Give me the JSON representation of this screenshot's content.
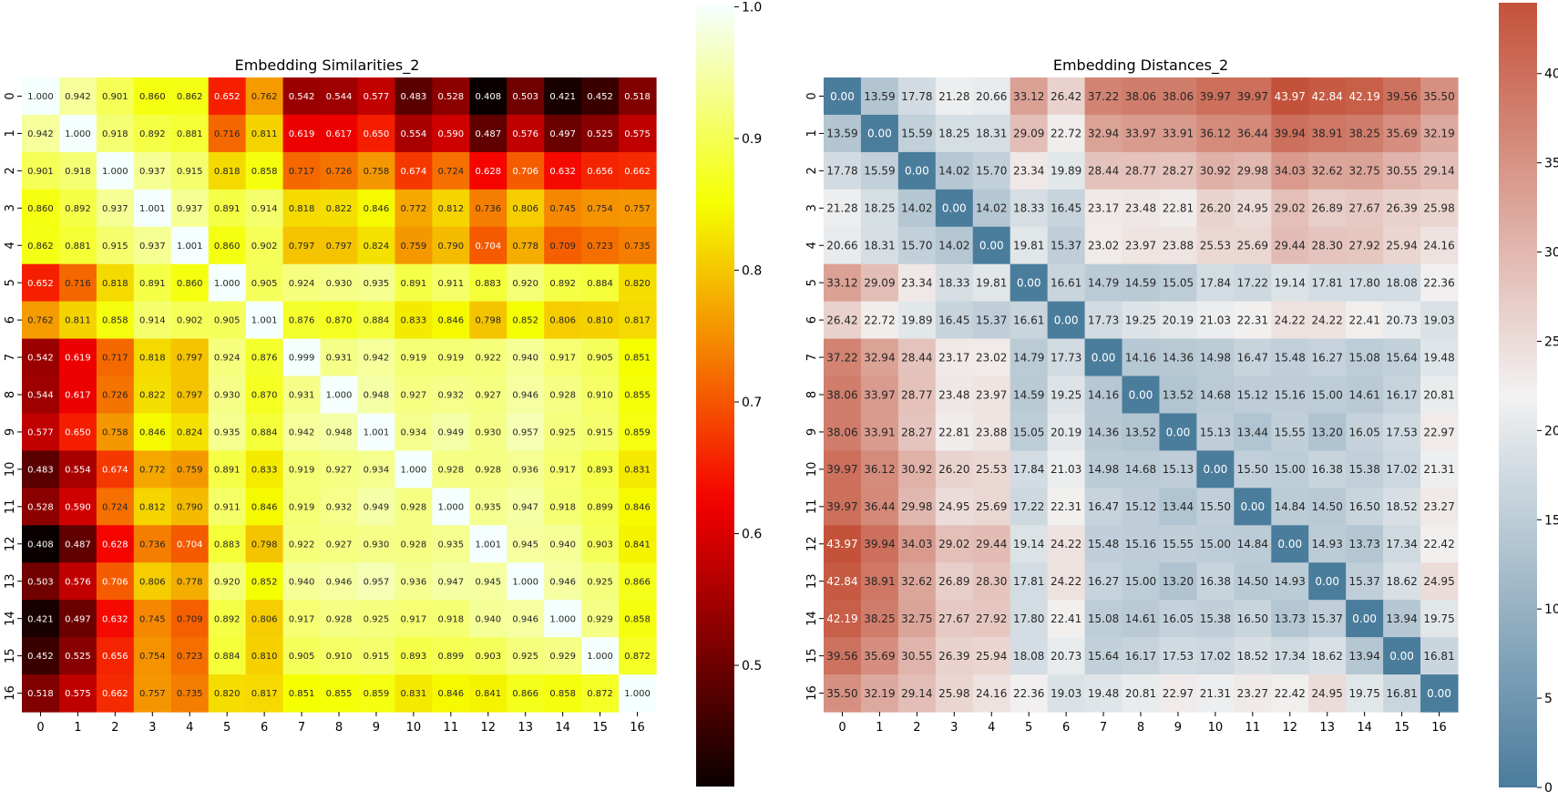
{
  "chart_data": [
    {
      "type": "heatmap",
      "title": "Embedding Similarities_2",
      "xlabel": "",
      "ylabel": "",
      "x_ticks": [
        "0",
        "1",
        "2",
        "3",
        "4",
        "5",
        "6",
        "7",
        "8",
        "9",
        "10",
        "11",
        "12",
        "13",
        "14",
        "15",
        "16"
      ],
      "y_ticks": [
        "0",
        "1",
        "2",
        "3",
        "4",
        "5",
        "6",
        "7",
        "8",
        "9",
        "10",
        "11",
        "12",
        "13",
        "14",
        "15",
        "16"
      ],
      "colormap": "hot",
      "vmin": 0.408,
      "vmax": 1.001,
      "colorbar_ticks": [
        "0.5",
        "0.6",
        "0.7",
        "0.8",
        "0.9",
        "1.0"
      ],
      "annotations_format": "3 decimals",
      "values": [
        [
          1.0,
          0.942,
          0.901,
          0.86,
          0.862,
          0.652,
          0.762,
          0.542,
          0.544,
          0.577,
          0.483,
          0.528,
          0.408,
          0.503,
          0.421,
          0.452,
          0.518
        ],
        [
          0.942,
          1.0,
          0.918,
          0.892,
          0.881,
          0.716,
          0.811,
          0.619,
          0.617,
          0.65,
          0.554,
          0.59,
          0.487,
          0.576,
          0.497,
          0.525,
          0.575
        ],
        [
          0.901,
          0.918,
          1.0,
          0.937,
          0.915,
          0.818,
          0.858,
          0.717,
          0.726,
          0.758,
          0.674,
          0.724,
          0.628,
          0.706,
          0.632,
          0.656,
          0.662
        ],
        [
          0.86,
          0.892,
          0.937,
          1.001,
          0.937,
          0.891,
          0.914,
          0.818,
          0.822,
          0.846,
          0.772,
          0.812,
          0.736,
          0.806,
          0.745,
          0.754,
          0.757
        ],
        [
          0.862,
          0.881,
          0.915,
          0.937,
          1.001,
          0.86,
          0.902,
          0.797,
          0.797,
          0.824,
          0.759,
          0.79,
          0.704,
          0.778,
          0.709,
          0.723,
          0.735
        ],
        [
          0.652,
          0.716,
          0.818,
          0.891,
          0.86,
          1.0,
          0.905,
          0.924,
          0.93,
          0.935,
          0.891,
          0.911,
          0.883,
          0.92,
          0.892,
          0.884,
          0.82
        ],
        [
          0.762,
          0.811,
          0.858,
          0.914,
          0.902,
          0.905,
          1.001,
          0.876,
          0.87,
          0.884,
          0.833,
          0.846,
          0.798,
          0.852,
          0.806,
          0.81,
          0.817
        ],
        [
          0.542,
          0.619,
          0.717,
          0.818,
          0.797,
          0.924,
          0.876,
          0.999,
          0.931,
          0.942,
          0.919,
          0.919,
          0.922,
          0.94,
          0.917,
          0.905,
          0.851
        ],
        [
          0.544,
          0.617,
          0.726,
          0.822,
          0.797,
          0.93,
          0.87,
          0.931,
          1.0,
          0.948,
          0.927,
          0.932,
          0.927,
          0.946,
          0.928,
          0.91,
          0.855
        ],
        [
          0.577,
          0.65,
          0.758,
          0.846,
          0.824,
          0.935,
          0.884,
          0.942,
          0.948,
          1.001,
          0.934,
          0.949,
          0.93,
          0.957,
          0.925,
          0.915,
          0.859
        ],
        [
          0.483,
          0.554,
          0.674,
          0.772,
          0.759,
          0.891,
          0.833,
          0.919,
          0.927,
          0.934,
          1.0,
          0.928,
          0.928,
          0.936,
          0.917,
          0.893,
          0.831
        ],
        [
          0.528,
          0.59,
          0.724,
          0.812,
          0.79,
          0.911,
          0.846,
          0.919,
          0.932,
          0.949,
          0.928,
          1.0,
          0.935,
          0.947,
          0.918,
          0.899,
          0.846
        ],
        [
          0.408,
          0.487,
          0.628,
          0.736,
          0.704,
          0.883,
          0.798,
          0.922,
          0.927,
          0.93,
          0.928,
          0.935,
          1.001,
          0.945,
          0.94,
          0.903,
          0.841
        ],
        [
          0.503,
          0.576,
          0.706,
          0.806,
          0.778,
          0.92,
          0.852,
          0.94,
          0.946,
          0.957,
          0.936,
          0.947,
          0.945,
          1.0,
          0.946,
          0.925,
          0.866
        ],
        [
          0.421,
          0.497,
          0.632,
          0.745,
          0.709,
          0.892,
          0.806,
          0.917,
          0.928,
          0.925,
          0.917,
          0.918,
          0.94,
          0.946,
          1.0,
          0.929,
          0.858
        ],
        [
          0.452,
          0.525,
          0.656,
          0.754,
          0.723,
          0.884,
          0.81,
          0.905,
          0.91,
          0.915,
          0.893,
          0.899,
          0.903,
          0.925,
          0.929,
          1.0,
          0.872
        ],
        [
          0.518,
          0.575,
          0.662,
          0.757,
          0.735,
          0.82,
          0.817,
          0.851,
          0.855,
          0.859,
          0.831,
          0.846,
          0.841,
          0.866,
          0.858,
          0.872,
          1.0
        ]
      ]
    },
    {
      "type": "heatmap",
      "title": "Embedding Distances_2",
      "xlabel": "",
      "ylabel": "",
      "x_ticks": [
        "0",
        "1",
        "2",
        "3",
        "4",
        "5",
        "6",
        "7",
        "8",
        "9",
        "10",
        "11",
        "12",
        "13",
        "14",
        "15",
        "16"
      ],
      "y_ticks": [
        "0",
        "1",
        "2",
        "3",
        "4",
        "5",
        "6",
        "7",
        "8",
        "9",
        "10",
        "11",
        "12",
        "13",
        "14",
        "15",
        "16"
      ],
      "colormap": "diverging blue-white-red",
      "colors": {
        "low": "#4a7c9c",
        "mid": "#f2f2f2",
        "high": "#c4523a"
      },
      "vmin": 0,
      "vmax": 43.97,
      "colorbar_ticks": [
        "0",
        "5",
        "10",
        "15",
        "20",
        "25",
        "30",
        "35",
        "40"
      ],
      "annotations_format": "2 decimals",
      "values": [
        [
          0.0,
          13.59,
          17.78,
          21.28,
          20.66,
          33.12,
          26.42,
          37.22,
          38.06,
          38.06,
          39.97,
          39.97,
          43.97,
          42.84,
          42.19,
          39.56,
          35.5
        ],
        [
          13.59,
          0.0,
          15.59,
          18.25,
          18.31,
          29.09,
          22.72,
          32.94,
          33.97,
          33.91,
          36.12,
          36.44,
          39.94,
          38.91,
          38.25,
          35.69,
          32.19
        ],
        [
          17.78,
          15.59,
          0.0,
          14.02,
          15.7,
          23.34,
          19.89,
          28.44,
          28.77,
          28.27,
          30.92,
          29.98,
          34.03,
          32.62,
          32.75,
          30.55,
          29.14
        ],
        [
          21.28,
          18.25,
          14.02,
          0.0,
          14.02,
          18.33,
          16.45,
          23.17,
          23.48,
          22.81,
          26.2,
          24.95,
          29.02,
          26.89,
          27.67,
          26.39,
          25.98
        ],
        [
          20.66,
          18.31,
          15.7,
          14.02,
          0.0,
          19.81,
          15.37,
          23.02,
          23.97,
          23.88,
          25.53,
          25.69,
          29.44,
          28.3,
          27.92,
          25.94,
          24.16
        ],
        [
          33.12,
          29.09,
          23.34,
          18.33,
          19.81,
          0.0,
          16.61,
          14.79,
          14.59,
          15.05,
          17.84,
          17.22,
          19.14,
          17.81,
          17.8,
          18.08,
          22.36
        ],
        [
          26.42,
          22.72,
          19.89,
          16.45,
          15.37,
          16.61,
          0.0,
          17.73,
          19.25,
          20.19,
          21.03,
          22.31,
          24.22,
          24.22,
          22.41,
          20.73,
          19.03
        ],
        [
          37.22,
          32.94,
          28.44,
          23.17,
          23.02,
          14.79,
          17.73,
          0.0,
          14.16,
          14.36,
          14.98,
          16.47,
          15.48,
          16.27,
          15.08,
          15.64,
          19.48
        ],
        [
          38.06,
          33.97,
          28.77,
          23.48,
          23.97,
          14.59,
          19.25,
          14.16,
          0.0,
          13.52,
          14.68,
          15.12,
          15.16,
          15.0,
          14.61,
          16.17,
          20.81
        ],
        [
          38.06,
          33.91,
          28.27,
          22.81,
          23.88,
          15.05,
          20.19,
          14.36,
          13.52,
          0.0,
          15.13,
          13.44,
          15.55,
          13.2,
          16.05,
          17.53,
          22.97
        ],
        [
          39.97,
          36.12,
          30.92,
          26.2,
          25.53,
          17.84,
          21.03,
          14.98,
          14.68,
          15.13,
          0.0,
          15.5,
          15.0,
          16.38,
          15.38,
          17.02,
          21.31
        ],
        [
          39.97,
          36.44,
          29.98,
          24.95,
          25.69,
          17.22,
          22.31,
          16.47,
          15.12,
          13.44,
          15.5,
          0.0,
          14.84,
          14.5,
          16.5,
          18.52,
          23.27
        ],
        [
          43.97,
          39.94,
          34.03,
          29.02,
          29.44,
          19.14,
          24.22,
          15.48,
          15.16,
          15.55,
          15.0,
          14.84,
          0.0,
          14.93,
          13.73,
          17.34,
          22.42
        ],
        [
          42.84,
          38.91,
          32.62,
          26.89,
          28.3,
          17.81,
          24.22,
          16.27,
          15.0,
          13.2,
          16.38,
          14.5,
          14.93,
          0.0,
          15.37,
          18.62,
          24.95
        ],
        [
          42.19,
          38.25,
          32.75,
          27.67,
          27.92,
          17.8,
          22.41,
          15.08,
          14.61,
          16.05,
          15.38,
          16.5,
          13.73,
          15.37,
          0.0,
          13.94,
          19.75
        ],
        [
          39.56,
          35.69,
          30.55,
          26.39,
          25.94,
          18.08,
          20.73,
          15.64,
          16.17,
          17.53,
          17.02,
          18.52,
          17.34,
          18.62,
          13.94,
          0.0,
          16.81
        ],
        [
          35.5,
          32.19,
          29.14,
          25.98,
          24.16,
          22.36,
          19.03,
          19.48,
          20.81,
          22.97,
          21.31,
          23.27,
          22.42,
          24.95,
          19.75,
          16.81,
          0.0
        ]
      ]
    }
  ]
}
